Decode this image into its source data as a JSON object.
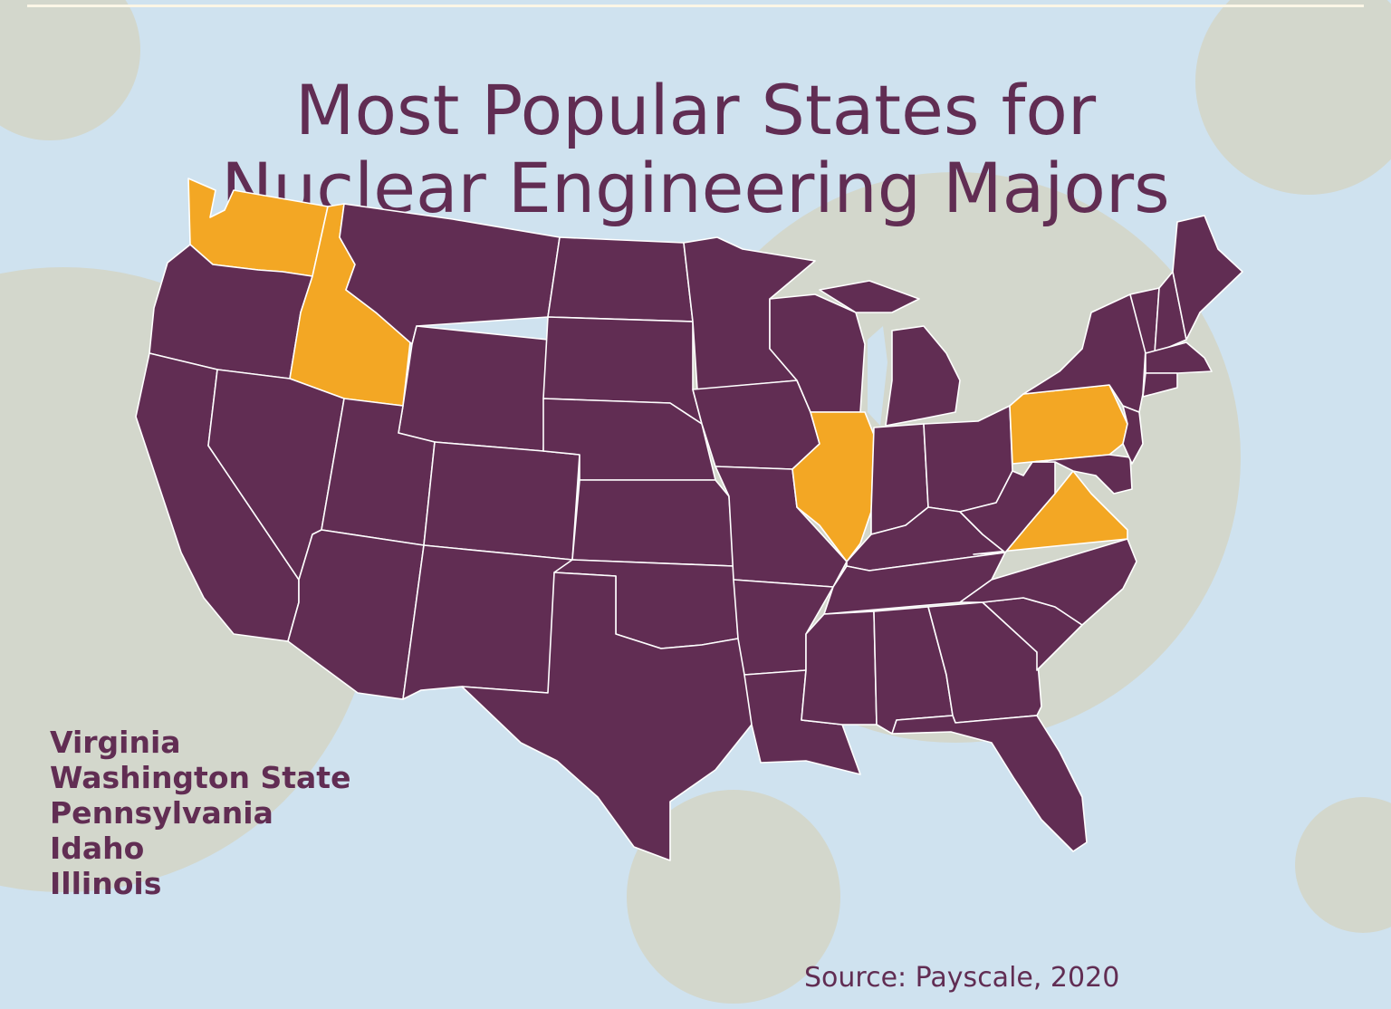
{
  "title": {
    "line1": "Most Popular States for",
    "line2": "Nuclear Engineering Majors"
  },
  "highlighted_states": [
    "Virginia",
    "Washington State",
    "Pennsylvania",
    "Idaho",
    "Illinois"
  ],
  "source": "Source: Payscale, 2020",
  "colors": {
    "background": "#cfe2ef",
    "circles": "#d3d7cc",
    "state_default": "#612d53",
    "state_highlight": "#f3a724",
    "text": "#612d53",
    "borders": "#ffffff"
  }
}
